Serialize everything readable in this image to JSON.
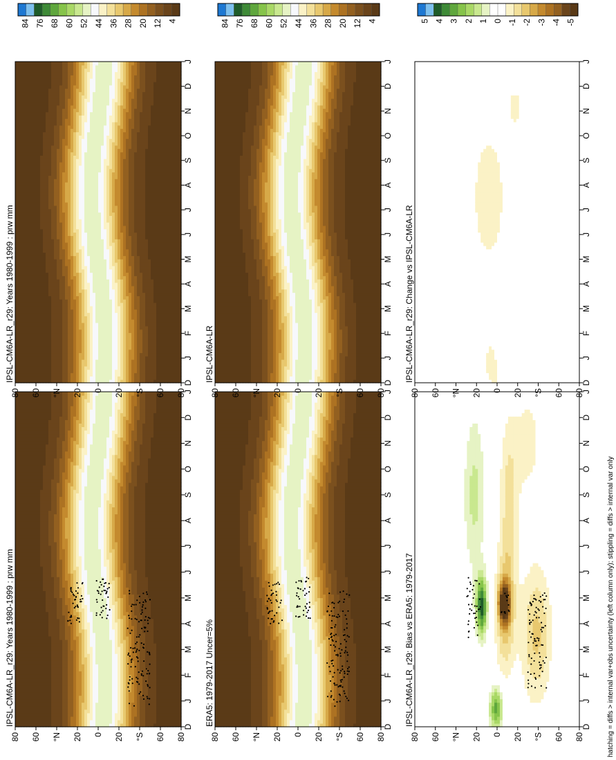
{
  "figure": {
    "footnote": "hatching = diffs > internal var+obs uncertainty (left column only); stippling = diffs > internal var only"
  },
  "colors": {
    "seq": [
      "#1e78d2",
      "#7ec0ee",
      "#1f5c2a",
      "#3e8a37",
      "#5fa73d",
      "#86c44a",
      "#a9d866",
      "#c9e88f",
      "#e6f3c4",
      "#f7f8fc",
      "#fbf2c6",
      "#f3e09a",
      "#e8c86e",
      "#d7a948",
      "#c48a2e",
      "#ad7222",
      "#936020",
      "#7b501e",
      "#6a441b",
      "#5a3a17"
    ],
    "div": [
      "#1e78d2",
      "#7ec0ee",
      "#1f5c2a",
      "#3e8a37",
      "#5fa73d",
      "#86c44a",
      "#a9d866",
      "#c9e88f",
      "#e6f3c4",
      "#ffffff",
      "#ffffff",
      "#fbf2c6",
      "#f3e09a",
      "#e8c86e",
      "#d7a948",
      "#c48a2e",
      "#ad7222",
      "#936020",
      "#6a441b",
      "#5a3a17"
    ]
  },
  "chart_data": [
    {
      "type": "heatmap",
      "title": "IPSL-CM6A-LR_r29: Years 1980-1999 : prw mm",
      "x_ticks": [
        "D",
        "J",
        "F",
        "M",
        "A",
        "M",
        "J",
        "J",
        "A",
        "S",
        "O",
        "N",
        "D",
        "J"
      ],
      "y_ticks": [
        "80",
        "60",
        "°N",
        "20",
        "0",
        "20",
        "°S",
        "60",
        "80"
      ],
      "value_ticks": [
        "84",
        "76",
        "68",
        "60",
        "52",
        "44",
        "36",
        "28",
        "20",
        "12",
        "4"
      ],
      "value_range": [
        0,
        88
      ],
      "palette": "seq",
      "field": "clim",
      "stipple": "model"
    },
    {
      "type": "heatmap",
      "title": "IPSL-CM6A-LR_r29: Years 1980-1999 : prw mm",
      "x_ticks": [
        "D",
        "J",
        "F",
        "M",
        "A",
        "M",
        "J",
        "J",
        "A",
        "S",
        "O",
        "N",
        "D",
        "J"
      ],
      "y_ticks": [
        "80",
        "60",
        "°N",
        "20",
        "0",
        "20",
        "°S",
        "60",
        "80"
      ],
      "value_ticks": [
        "84",
        "76",
        "68",
        "60",
        "52",
        "44",
        "36",
        "28",
        "20",
        "12",
        "4"
      ],
      "value_range": [
        0,
        88
      ],
      "palette": "seq",
      "field": "clim",
      "stipple": "none"
    },
    {
      "type": "heatmap",
      "title": "ERA5: 1979-2017 Uncer=5%",
      "x_ticks": [
        "D",
        "J",
        "F",
        "M",
        "A",
        "M",
        "J",
        "J",
        "A",
        "S",
        "O",
        "N",
        "D",
        "J"
      ],
      "y_ticks": [
        "80",
        "60",
        "°N",
        "20",
        "0",
        "20",
        "°S",
        "60",
        "80"
      ],
      "value_ticks": [
        "84",
        "76",
        "68",
        "60",
        "52",
        "44",
        "36",
        "28",
        "20",
        "12",
        "4"
      ],
      "value_range": [
        0,
        88
      ],
      "palette": "seq",
      "field": "clim",
      "stipple": "obs"
    },
    {
      "type": "heatmap",
      "title": "IPSL-CM6A-LR",
      "x_ticks": [
        "D",
        "J",
        "F",
        "M",
        "A",
        "M",
        "J",
        "J",
        "A",
        "S",
        "O",
        "N",
        "D",
        "J"
      ],
      "y_ticks": [
        "80",
        "60",
        "°N",
        "20",
        "0",
        "20",
        "°S",
        "60",
        "80"
      ],
      "value_ticks": [
        "84",
        "76",
        "68",
        "60",
        "52",
        "44",
        "36",
        "28",
        "20",
        "12",
        "4"
      ],
      "value_range": [
        0,
        88
      ],
      "palette": "seq",
      "field": "clim",
      "stipple": "none"
    },
    {
      "type": "heatmap",
      "title": "IPSL-CM6A-LR_r29: Bias vs ERA5: 1979-2017",
      "x_ticks": [
        "D",
        "J",
        "F",
        "M",
        "A",
        "M",
        "J",
        "J",
        "A",
        "S",
        "O",
        "N",
        "D",
        "J"
      ],
      "y_ticks": [
        "80",
        "60",
        "°N",
        "20",
        "0",
        "20",
        "°S",
        "60",
        "80"
      ],
      "value_ticks": [
        "5",
        "4",
        "3",
        "2",
        "1",
        "0",
        "-1",
        "-2",
        "-3",
        "-4",
        "-5"
      ],
      "value_range": [
        -5.5,
        5.5
      ],
      "palette": "div",
      "field": "bias",
      "stipple": "bias"
    },
    {
      "type": "heatmap",
      "title": "IPSL-CM6A-LR_r29: Change vs IPSL-CM6A-LR",
      "x_ticks": [
        "D",
        "J",
        "F",
        "M",
        "A",
        "M",
        "J",
        "J",
        "A",
        "S",
        "O",
        "N",
        "D",
        "J"
      ],
      "y_ticks": [
        "80",
        "60",
        "°N",
        "20",
        "0",
        "20",
        "°S",
        "60",
        "80"
      ],
      "value_ticks": [
        "5",
        "4",
        "3",
        "2",
        "1",
        "0",
        "-1",
        "-2",
        "-3",
        "-4",
        "-5"
      ],
      "value_range": [
        -5.5,
        5.5
      ],
      "palette": "div",
      "field": "change",
      "stipple": "none"
    }
  ]
}
